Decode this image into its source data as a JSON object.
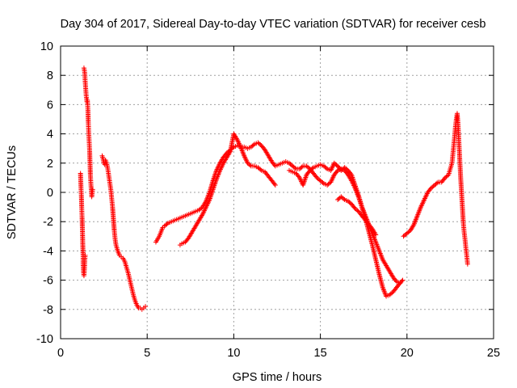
{
  "chart_data": {
    "type": "scatter",
    "title": "Day 304 of 2017, Sidereal Day-to-day VTEC variation (SDTVAR) for receiver cesb",
    "xlabel": "GPS time / hours",
    "ylabel": "SDTVAR / TECUs",
    "xlim": [
      0,
      25
    ],
    "ylim": [
      -10,
      10
    ],
    "xticks": [
      0,
      5,
      10,
      15,
      20,
      25
    ],
    "yticks": [
      -10,
      -8,
      -6,
      -4,
      -2,
      0,
      2,
      4,
      6,
      8,
      10
    ],
    "grid": true,
    "marker": "+",
    "color": "#ff0000",
    "series": [
      {
        "name": "s1",
        "points": [
          [
            1.15,
            1.3
          ],
          [
            1.18,
            0.3
          ],
          [
            1.2,
            -0.2
          ],
          [
            1.22,
            -1.0
          ],
          [
            1.24,
            -1.7
          ],
          [
            1.26,
            -2.5
          ],
          [
            1.28,
            -3.5
          ],
          [
            1.3,
            -4.3
          ],
          [
            1.3,
            -4.9
          ],
          [
            1.32,
            -5.4
          ],
          [
            1.35,
            -5.7
          ],
          [
            1.38,
            -5.2
          ],
          [
            1.4,
            -4.6
          ],
          [
            1.42,
            -4.3
          ]
        ]
      },
      {
        "name": "s2",
        "points": [
          [
            1.35,
            8.5
          ],
          [
            1.38,
            8.3
          ],
          [
            1.4,
            8.1
          ],
          [
            1.42,
            7.6
          ],
          [
            1.45,
            7.1
          ],
          [
            1.48,
            6.6
          ],
          [
            1.52,
            6.2
          ],
          [
            1.55,
            6.3
          ],
          [
            1.58,
            5.6
          ],
          [
            1.6,
            4.8
          ],
          [
            1.62,
            4.2
          ],
          [
            1.65,
            3.5
          ],
          [
            1.68,
            2.8
          ],
          [
            1.7,
            2.0
          ],
          [
            1.72,
            1.2
          ],
          [
            1.75,
            0.6
          ],
          [
            1.78,
            0.0
          ],
          [
            1.8,
            -0.3
          ],
          [
            1.85,
            0.2
          ]
        ]
      },
      {
        "name": "s3",
        "points": [
          [
            2.4,
            2.5
          ],
          [
            2.45,
            2.3
          ],
          [
            2.5,
            2.0
          ],
          [
            2.55,
            1.9
          ],
          [
            2.6,
            2.2
          ],
          [
            2.7,
            1.8
          ],
          [
            2.75,
            1.4
          ],
          [
            2.8,
            1.0
          ],
          [
            2.85,
            0.6
          ],
          [
            2.9,
            0.2
          ],
          [
            2.95,
            -0.4
          ],
          [
            3.0,
            -1.0
          ],
          [
            3.05,
            -1.8
          ],
          [
            3.1,
            -2.6
          ],
          [
            3.15,
            -3.2
          ],
          [
            3.2,
            -3.6
          ],
          [
            3.3,
            -4.0
          ],
          [
            3.4,
            -4.3
          ],
          [
            3.5,
            -4.4
          ],
          [
            3.6,
            -4.5
          ],
          [
            3.7,
            -4.7
          ],
          [
            3.8,
            -5.1
          ],
          [
            3.9,
            -5.5
          ],
          [
            4.0,
            -6.0
          ],
          [
            4.1,
            -6.5
          ],
          [
            4.2,
            -7.0
          ],
          [
            4.3,
            -7.4
          ],
          [
            4.4,
            -7.7
          ],
          [
            4.5,
            -7.9
          ],
          [
            4.6,
            -7.9
          ],
          [
            4.7,
            -8.0
          ],
          [
            4.8,
            -7.9
          ],
          [
            4.9,
            -7.8
          ]
        ]
      },
      {
        "name": "s4",
        "points": [
          [
            5.5,
            -3.4
          ],
          [
            5.6,
            -3.2
          ],
          [
            5.7,
            -3.0
          ],
          [
            5.8,
            -2.7
          ],
          [
            5.9,
            -2.4
          ],
          [
            6.0,
            -2.3
          ],
          [
            6.2,
            -2.1
          ],
          [
            6.4,
            -2.0
          ],
          [
            6.6,
            -1.9
          ],
          [
            6.8,
            -1.8
          ],
          [
            7.0,
            -1.7
          ],
          [
            7.2,
            -1.6
          ],
          [
            7.4,
            -1.5
          ],
          [
            7.6,
            -1.4
          ],
          [
            7.8,
            -1.3
          ],
          [
            8.0,
            -1.2
          ],
          [
            8.2,
            -1.0
          ],
          [
            8.4,
            -0.6
          ],
          [
            8.6,
            0.0
          ],
          [
            8.8,
            0.8
          ],
          [
            9.0,
            1.5
          ],
          [
            9.2,
            2.0
          ],
          [
            9.4,
            2.4
          ],
          [
            9.6,
            2.7
          ],
          [
            9.8,
            2.9
          ],
          [
            10.0,
            3.1
          ],
          [
            10.2,
            3.2
          ],
          [
            10.4,
            3.1
          ],
          [
            10.6,
            3.1
          ],
          [
            10.8,
            3.0
          ],
          [
            11.0,
            3.1
          ],
          [
            11.2,
            3.3
          ],
          [
            11.4,
            3.4
          ],
          [
            11.6,
            3.2
          ],
          [
            11.8,
            2.9
          ],
          [
            12.0,
            2.5
          ],
          [
            12.2,
            2.1
          ],
          [
            12.4,
            1.8
          ],
          [
            12.6,
            1.9
          ],
          [
            12.8,
            2.0
          ],
          [
            13.0,
            2.1
          ],
          [
            13.2,
            2.0
          ],
          [
            13.4,
            1.8
          ],
          [
            13.6,
            1.6
          ],
          [
            13.8,
            1.6
          ],
          [
            14.0,
            1.8
          ],
          [
            14.2,
            1.8
          ],
          [
            14.4,
            1.6
          ],
          [
            14.6,
            1.3
          ],
          [
            14.8,
            1.0
          ],
          [
            15.0,
            0.8
          ],
          [
            15.2,
            0.6
          ],
          [
            15.4,
            0.5
          ],
          [
            15.6,
            0.7
          ],
          [
            15.8,
            1.2
          ],
          [
            16.0,
            1.5
          ],
          [
            16.2,
            1.6
          ],
          [
            16.4,
            1.5
          ],
          [
            16.6,
            1.2
          ],
          [
            16.8,
            0.8
          ],
          [
            17.0,
            0.3
          ],
          [
            17.2,
            -0.3
          ],
          [
            17.4,
            -1.0
          ],
          [
            17.6,
            -1.8
          ],
          [
            17.8,
            -2.7
          ],
          [
            18.0,
            -3.6
          ],
          [
            18.2,
            -4.6
          ],
          [
            18.4,
            -5.6
          ],
          [
            18.6,
            -6.5
          ],
          [
            18.8,
            -7.1
          ],
          [
            19.0,
            -7.0
          ],
          [
            19.2,
            -6.8
          ],
          [
            19.4,
            -6.5
          ],
          [
            19.6,
            -6.2
          ],
          [
            19.75,
            -6.0
          ]
        ]
      },
      {
        "name": "s5",
        "points": [
          [
            6.9,
            -3.6
          ],
          [
            7.0,
            -3.5
          ],
          [
            7.2,
            -3.4
          ],
          [
            7.4,
            -3.1
          ],
          [
            7.6,
            -2.7
          ],
          [
            7.8,
            -2.3
          ],
          [
            8.0,
            -1.9
          ],
          [
            8.2,
            -1.5
          ],
          [
            8.4,
            -1.0
          ],
          [
            8.6,
            -0.5
          ],
          [
            8.8,
            0.2
          ],
          [
            9.0,
            0.9
          ],
          [
            9.2,
            1.5
          ],
          [
            9.4,
            2.0
          ],
          [
            9.6,
            2.4
          ],
          [
            9.8,
            2.8
          ],
          [
            10.0,
            4.0
          ],
          [
            10.2,
            3.6
          ],
          [
            10.4,
            3.1
          ],
          [
            10.6,
            2.5
          ],
          [
            10.8,
            2.0
          ],
          [
            11.0,
            1.8
          ],
          [
            11.2,
            1.8
          ],
          [
            11.4,
            1.7
          ],
          [
            11.6,
            1.5
          ],
          [
            11.8,
            1.4
          ],
          [
            12.0,
            1.1
          ],
          [
            12.2,
            0.8
          ],
          [
            12.4,
            0.5
          ]
        ]
      },
      {
        "name": "s6",
        "points": [
          [
            13.2,
            1.5
          ],
          [
            13.4,
            1.4
          ],
          [
            13.6,
            1.3
          ],
          [
            13.8,
            1.0
          ],
          [
            14.0,
            0.5
          ],
          [
            14.2,
            1.2
          ],
          [
            14.4,
            1.5
          ],
          [
            14.6,
            1.7
          ],
          [
            14.8,
            1.8
          ],
          [
            15.0,
            1.9
          ],
          [
            15.2,
            1.8
          ],
          [
            15.4,
            1.6
          ],
          [
            15.6,
            1.5
          ],
          [
            15.8,
            2.0
          ],
          [
            16.0,
            1.8
          ],
          [
            16.2,
            1.5
          ],
          [
            16.4,
            1.7
          ],
          [
            16.6,
            1.5
          ],
          [
            16.8,
            1.2
          ],
          [
            17.0,
            0.5
          ],
          [
            17.2,
            -0.2
          ],
          [
            17.4,
            -1.0
          ],
          [
            17.6,
            -1.6
          ],
          [
            17.8,
            -2.2
          ],
          [
            18.0,
            -2.8
          ],
          [
            18.2,
            -3.4
          ],
          [
            18.4,
            -4.0
          ],
          [
            18.6,
            -4.6
          ],
          [
            18.8,
            -5.0
          ],
          [
            19.0,
            -5.4
          ],
          [
            19.2,
            -5.8
          ],
          [
            19.4,
            -6.1
          ],
          [
            19.6,
            -6.2
          ]
        ]
      },
      {
        "name": "s7",
        "points": [
          [
            16.0,
            -0.5
          ],
          [
            16.2,
            -0.3
          ],
          [
            16.4,
            -0.5
          ],
          [
            16.6,
            -0.6
          ],
          [
            16.8,
            -0.8
          ],
          [
            17.0,
            -1.1
          ],
          [
            17.2,
            -1.3
          ],
          [
            17.4,
            -1.6
          ],
          [
            17.6,
            -1.9
          ],
          [
            17.8,
            -2.2
          ],
          [
            18.0,
            -2.5
          ],
          [
            18.2,
            -2.9
          ]
        ]
      },
      {
        "name": "s8",
        "points": [
          [
            19.8,
            -3.0
          ],
          [
            20.0,
            -2.8
          ],
          [
            20.2,
            -2.6
          ],
          [
            20.4,
            -2.2
          ],
          [
            20.6,
            -1.6
          ],
          [
            20.8,
            -1.0
          ],
          [
            21.0,
            -0.5
          ],
          [
            21.2,
            0.0
          ],
          [
            21.4,
            0.3
          ],
          [
            21.6,
            0.5
          ],
          [
            21.8,
            0.7
          ],
          [
            22.0,
            0.7
          ],
          [
            22.2,
            1.0
          ],
          [
            22.4,
            1.2
          ],
          [
            22.5,
            1.6
          ],
          [
            22.6,
            2.0
          ],
          [
            22.65,
            2.6
          ],
          [
            22.7,
            3.2
          ],
          [
            22.75,
            3.8
          ],
          [
            22.8,
            4.5
          ],
          [
            22.85,
            5.0
          ],
          [
            22.9,
            5.4
          ],
          [
            22.95,
            4.6
          ],
          [
            23.0,
            3.4
          ],
          [
            23.05,
            2.2
          ],
          [
            23.1,
            1.0
          ],
          [
            23.15,
            0.0
          ],
          [
            23.2,
            -1.0
          ],
          [
            23.25,
            -2.0
          ],
          [
            23.3,
            -2.7
          ],
          [
            23.35,
            -3.2
          ],
          [
            23.4,
            -3.8
          ],
          [
            23.45,
            -4.3
          ],
          [
            23.5,
            -4.9
          ]
        ]
      }
    ]
  }
}
